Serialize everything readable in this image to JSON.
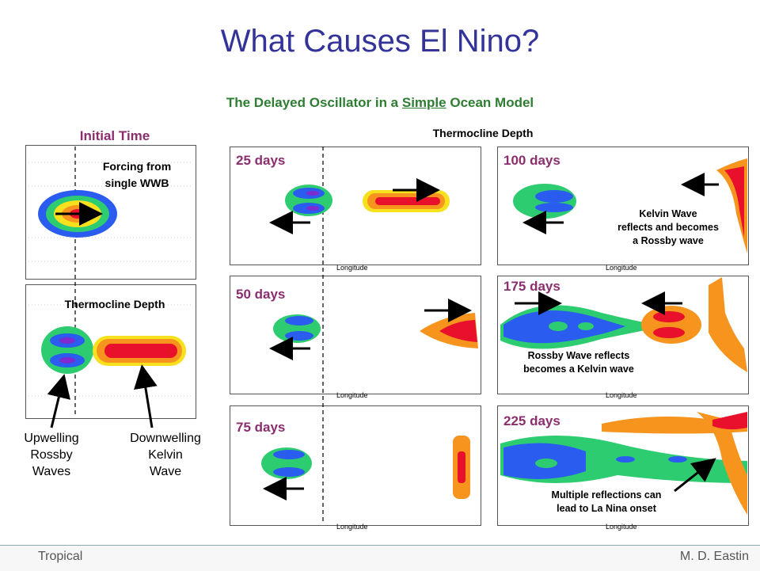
{
  "title": "What Causes El Nino?",
  "subtitle": {
    "prefix": "The Delayed Oscillator in a ",
    "underlined": "Simple",
    "suffix": " Ocean Model"
  },
  "initial_time_label": "Initial Time",
  "thermocline_depth_top": "Thermocline Depth",
  "forcing_label": [
    "Forcing from",
    "single WWB"
  ],
  "thermocline_depth_left": "Thermocline Depth",
  "upwelling_label": [
    "Upwelling",
    "Rossby",
    "Waves"
  ],
  "downwelling_label": [
    "Downwelling",
    "Kelvin",
    "Wave"
  ],
  "panels": [
    {
      "days": "25 days"
    },
    {
      "days": "50 days"
    },
    {
      "days": "75 days"
    },
    {
      "days": "100 days",
      "note": [
        "Kelvin Wave",
        "reflects and becomes",
        "a Rossby wave"
      ]
    },
    {
      "days": "175 days",
      "note": [
        "Rossby Wave reflects",
        "becomes a Kelvin wave"
      ]
    },
    {
      "days": "225 days",
      "note": [
        "Multiple reflections can",
        "lead to La Nina onset"
      ]
    }
  ],
  "axis_label": "Longitude",
  "footer": {
    "left": "Tropical",
    "right": "M. D. Eastin"
  },
  "colors": {
    "title": "#333399",
    "subtitle": "#2e7d32",
    "days": "#8b2e6e",
    "blue": "#1f3fe0",
    "green": "#2ecc71",
    "red": "#e8102a",
    "orange": "#f7941d"
  }
}
